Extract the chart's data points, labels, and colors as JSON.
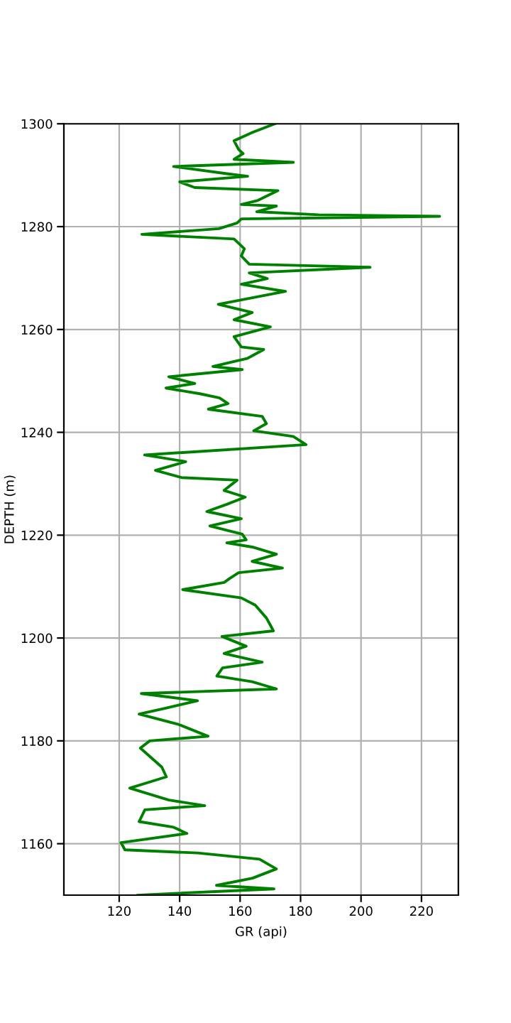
{
  "chart_data": {
    "type": "line",
    "xlabel": "GR (api)",
    "ylabel": "DEPTH (m)",
    "xlim": [
      101.7,
      232.2
    ],
    "ylim": [
      1150,
      1300
    ],
    "xticks": [
      120,
      140,
      160,
      180,
      200,
      220
    ],
    "yticks": [
      1160,
      1180,
      1200,
      1220,
      1240,
      1260,
      1280,
      1300
    ],
    "grid": true,
    "marker": "none",
    "line_style": "solid",
    "series": [
      {
        "color": "#008000",
        "x": [
          171.5,
          164,
          158,
          159.5,
          161,
          158,
          177.6,
          138,
          155.6,
          162.5,
          140,
          145,
          172.5,
          165.9,
          160.4,
          172,
          165.5,
          186,
          226,
          160.4,
          159,
          153,
          127.5,
          158,
          161.4,
          160.4,
          163,
          203,
          163,
          169,
          160.4,
          175,
          152.8,
          164,
          158,
          170,
          158,
          160.4,
          167.8,
          162.5,
          151,
          160.7,
          136.4,
          145,
          135.5,
          146.7,
          153.2,
          156,
          149.5,
          167.3,
          168.7,
          164.5,
          177.6,
          181.8,
          128.4,
          142,
          132,
          140.6,
          159,
          154.7,
          161.7,
          155.6,
          149,
          160.4,
          150,
          160.7,
          162,
          155.6,
          164,
          172,
          164,
          174,
          159.5,
          156.6,
          154.7,
          141,
          160.4,
          165,
          168.7,
          170,
          171,
          154,
          162,
          154.7,
          167.3,
          154.2,
          152.3,
          164,
          172,
          127.3,
          145.9,
          135.6,
          126.6,
          139.6,
          149.4,
          130.1,
          127,
          134.1,
          135.6,
          123.5,
          136.4,
          148.3,
          128.5,
          126.6,
          138,
          142.4,
          120.6,
          121.9,
          145.9,
          166.4,
          172,
          164.1,
          152.2,
          171.2,
          126.2
        ],
        "values": [
          1300,
          1298.3,
          1296.7,
          1295.0,
          1294.2,
          1293.1,
          1292.5,
          1291.7,
          1290.3,
          1289.8,
          1288.7,
          1287.6,
          1287.0,
          1285.1,
          1284.3,
          1284.0,
          1282.9,
          1282.3,
          1282.0,
          1281.5,
          1280.7,
          1279.6,
          1278.5,
          1277.6,
          1275.7,
          1274.3,
          1272.7,
          1272.1,
          1271.0,
          1269.9,
          1268.8,
          1267.4,
          1264.9,
          1263.3,
          1261.9,
          1260.5,
          1258.6,
          1256.6,
          1256.1,
          1254.4,
          1252.8,
          1252.2,
          1250.8,
          1249.5,
          1248.6,
          1247.5,
          1246.7,
          1245.6,
          1244.5,
          1243.1,
          1241.7,
          1240.3,
          1239.2,
          1237.6,
          1235.6,
          1234.3,
          1232.6,
          1231.2,
          1230.7,
          1228.7,
          1227.4,
          1226.0,
          1224.6,
          1223.2,
          1221.8,
          1220.2,
          1219.1,
          1218.5,
          1217.7,
          1216.3,
          1214.9,
          1213.6,
          1212.7,
          1211.6,
          1210.8,
          1209.4,
          1207.8,
          1206.4,
          1203.9,
          1202.5,
          1201.4,
          1200.3,
          1198.4,
          1197.0,
          1195.3,
          1194.2,
          1192.6,
          1191.5,
          1190.1,
          1189.2,
          1187.8,
          1186.4,
          1185.2,
          1183.2,
          1180.9,
          1180.0,
          1178.6,
          1174.9,
          1173.0,
          1170.8,
          1168.5,
          1167.4,
          1166.6,
          1164.3,
          1163.2,
          1162.0,
          1160.2,
          1158.8,
          1158.2,
          1157.0,
          1155.1,
          1153.3,
          1151.9,
          1151.2,
          1150.0
        ]
      }
    ]
  }
}
